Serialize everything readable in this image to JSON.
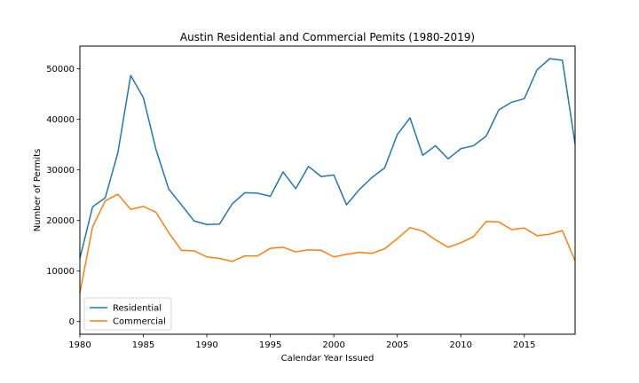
{
  "chart_data": {
    "type": "line",
    "title": "Austin Residential and Commercial Pemits (1980-2019)",
    "xlabel": "Calendar Year Issued",
    "ylabel": "Number of Permits",
    "xlim": [
      1980,
      2019
    ],
    "ylim": [
      -2500,
      54500
    ],
    "x_ticks": [
      1980,
      1985,
      1990,
      1995,
      2000,
      2005,
      2010,
      2015
    ],
    "y_ticks": [
      0,
      10000,
      20000,
      30000,
      40000,
      50000
    ],
    "x_tick_labels": [
      "1980",
      "1985",
      "1990",
      "1995",
      "2000",
      "2005",
      "2010",
      "2015"
    ],
    "y_tick_labels": [
      "0",
      "10000",
      "20000",
      "30000",
      "40000",
      "50000"
    ],
    "grid": false,
    "legend_position": "lower-left",
    "x": [
      1980,
      1981,
      1982,
      1983,
      1984,
      1985,
      1986,
      1987,
      1988,
      1989,
      1990,
      1991,
      1992,
      1993,
      1994,
      1995,
      1996,
      1997,
      1998,
      1999,
      2000,
      2001,
      2002,
      2003,
      2004,
      2005,
      2006,
      2007,
      2008,
      2009,
      2010,
      2011,
      2012,
      2013,
      2014,
      2015,
      2016,
      2017,
      2018,
      2019
    ],
    "series": [
      {
        "name": "Residential",
        "color": "#1f77b4",
        "values": [
          12500,
          22700,
          24500,
          33500,
          48700,
          44300,
          34000,
          26200,
          23100,
          19900,
          19200,
          19300,
          23300,
          25500,
          25400,
          24800,
          29600,
          26300,
          30700,
          28700,
          29000,
          23100,
          26100,
          28500,
          30400,
          37000,
          40300,
          32900,
          34800,
          32200,
          34200,
          34800,
          36700,
          41900,
          43400,
          44100,
          49800,
          52000,
          51700,
          35100
        ]
      },
      {
        "name": "Commercial",
        "color": "#ff7f0e",
        "values": [
          5700,
          18700,
          23900,
          25200,
          22200,
          22800,
          21600,
          17600,
          14100,
          14000,
          12800,
          12500,
          11900,
          13000,
          13000,
          14500,
          14700,
          13800,
          14200,
          14100,
          12800,
          13300,
          13700,
          13500,
          14400,
          16400,
          18600,
          17900,
          16200,
          14700,
          15600,
          16800,
          19800,
          19700,
          18200,
          18500,
          17000,
          17300,
          18000,
          12000
        ]
      }
    ]
  }
}
